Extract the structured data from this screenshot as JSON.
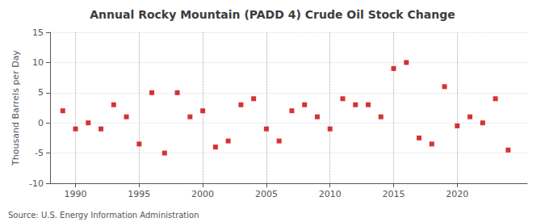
{
  "chart_data": {
    "type": "scatter",
    "title": "Annual Rocky Mountain (PADD 4) Crude Oil Stock Change",
    "ylabel": "Thousand Barrels per Day",
    "annotations": [
      "Source: U.S. Energy Information Administration"
    ],
    "x": [
      1989,
      1990,
      1991,
      1992,
      1993,
      1994,
      1995,
      1996,
      1997,
      1998,
      1999,
      2000,
      2001,
      2002,
      2003,
      2004,
      2005,
      2006,
      2007,
      2008,
      2009,
      2010,
      2011,
      2012,
      2013,
      2014,
      2015,
      2016,
      2017,
      2018,
      2019,
      2020,
      2021,
      2022,
      2023,
      2024
    ],
    "values": [
      2.0,
      -1.0,
      0.0,
      -1.0,
      3.0,
      1.0,
      -3.5,
      5.0,
      -5.0,
      5.0,
      1.0,
      2.0,
      -4.0,
      -3.0,
      3.0,
      4.0,
      -1.0,
      -3.0,
      2.0,
      3.0,
      1.0,
      -1.0,
      4.0,
      3.0,
      3.0,
      1.0,
      9.0,
      10.0,
      -2.5,
      -3.5,
      6.0,
      -0.5,
      1.0,
      0.0,
      4.0,
      -4.5
    ],
    "color": "#cc0000",
    "marker": "square",
    "xlim": [
      1988.0,
      2025.5
    ],
    "xticks": [
      1990,
      1995,
      2000,
      2005,
      2010,
      2015,
      2020
    ],
    "ylim": [
      -10,
      15
    ],
    "yticks": [
      -10,
      -5,
      0,
      5,
      10,
      15
    ],
    "grid": true
  }
}
